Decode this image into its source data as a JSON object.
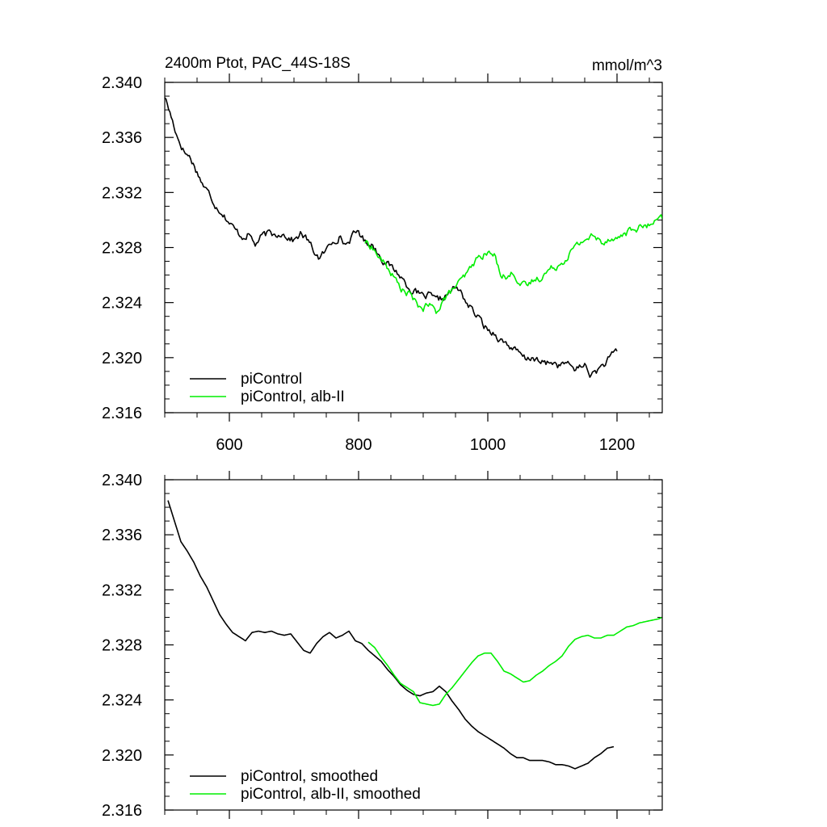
{
  "title_left": "2400m Ptot, PAC_44S-18S",
  "title_right": "mmol/m^3",
  "colors": {
    "control": "#000000",
    "alb": "#00ee00",
    "axis": "#000000"
  },
  "chart_data": [
    {
      "type": "line",
      "xlim": [
        500,
        1270
      ],
      "ylim": [
        2.316,
        2.34
      ],
      "yticks": [
        "2.316",
        "2.320",
        "2.324",
        "2.328",
        "2.332",
        "2.336",
        "2.340"
      ],
      "xticks": [
        "600",
        "800",
        "1000",
        "1200"
      ],
      "show_xtick_labels": true,
      "legend_position": "bottom-left",
      "series": [
        {
          "name": "piControl",
          "color": "control",
          "x": [
            500,
            510,
            520,
            530,
            540,
            550,
            560,
            570,
            580,
            590,
            600,
            610,
            620,
            630,
            640,
            650,
            660,
            670,
            680,
            690,
            700,
            710,
            720,
            730,
            740,
            750,
            760,
            770,
            780,
            790,
            800,
            810,
            820,
            830,
            840,
            850,
            860,
            870,
            880,
            890,
            900,
            910,
            920,
            930,
            940,
            950,
            960,
            970,
            980,
            990,
            1000,
            1010,
            1020,
            1030,
            1040,
            1050,
            1060,
            1070,
            1080,
            1090,
            1100,
            1110,
            1120,
            1130,
            1140,
            1150,
            1160,
            1170,
            1180,
            1190,
            1200
          ],
          "y": [
            2.339,
            2.3375,
            2.336,
            2.335,
            2.3345,
            2.3335,
            2.3325,
            2.3318,
            2.331,
            2.3305,
            2.3298,
            2.3292,
            2.3288,
            2.329,
            2.3282,
            2.3288,
            2.329,
            2.3289,
            2.3291,
            2.3288,
            2.3285,
            2.329,
            2.3286,
            2.3278,
            2.3272,
            2.3278,
            2.3285,
            2.3288,
            2.3282,
            2.3288,
            2.3292,
            2.3284,
            2.3283,
            2.3276,
            2.327,
            2.3266,
            2.3262,
            2.3256,
            2.325,
            2.3247,
            2.3244,
            2.3245,
            2.3241,
            2.3243,
            2.3247,
            2.3251,
            2.3246,
            2.3238,
            2.3232,
            2.3226,
            2.322,
            2.3218,
            2.3213,
            2.321,
            2.3206,
            2.3202,
            2.3198,
            2.3201,
            2.3196,
            2.3196,
            2.3197,
            2.3194,
            2.3196,
            2.3193,
            2.3192,
            2.3195,
            2.3187,
            2.3191,
            2.3195,
            2.32,
            2.3205
          ]
        },
        {
          "name": "piControl, alb-II",
          "color": "alb",
          "x": [
            810,
            820,
            830,
            840,
            850,
            860,
            870,
            880,
            890,
            900,
            910,
            920,
            930,
            940,
            950,
            960,
            970,
            980,
            990,
            1000,
            1010,
            1020,
            1030,
            1040,
            1050,
            1060,
            1070,
            1080,
            1090,
            1100,
            1110,
            1120,
            1130,
            1140,
            1150,
            1160,
            1170,
            1180,
            1190,
            1200,
            1210,
            1220,
            1230,
            1240,
            1250,
            1260,
            1270
          ],
          "y": [
            2.3284,
            2.3281,
            2.3274,
            2.3268,
            2.3262,
            2.3254,
            2.3248,
            2.3246,
            2.3238,
            2.3236,
            2.3238,
            2.3233,
            2.3242,
            2.3246,
            2.3252,
            2.3256,
            2.3262,
            2.327,
            2.3274,
            2.3276,
            2.3274,
            2.3262,
            2.3258,
            2.3262,
            2.3254,
            2.3251,
            2.3256,
            2.3258,
            2.3262,
            2.3265,
            2.3268,
            2.3272,
            2.3278,
            2.3282,
            2.3286,
            2.3288,
            2.3286,
            2.3284,
            2.3288,
            2.3286,
            2.329,
            2.3292,
            2.3294,
            2.3295,
            2.3296,
            2.3298,
            2.3301
          ]
        }
      ]
    },
    {
      "type": "line",
      "xlim": [
        500,
        1270
      ],
      "ylim": [
        2.316,
        2.34
      ],
      "yticks": [
        "2.316",
        "2.320",
        "2.324",
        "2.328",
        "2.332",
        "2.336",
        "2.340"
      ],
      "xticks": [
        "600",
        "800",
        "1000",
        "1200"
      ],
      "show_xtick_labels": false,
      "legend_position": "bottom-left",
      "series": [
        {
          "name": "piControl, smoothed",
          "color": "control",
          "x": [
            505,
            515,
            525,
            535,
            545,
            555,
            565,
            575,
            585,
            595,
            605,
            615,
            625,
            635,
            645,
            655,
            665,
            675,
            685,
            695,
            705,
            715,
            725,
            735,
            745,
            755,
            765,
            775,
            785,
            795,
            805,
            815,
            825,
            835,
            845,
            855,
            865,
            875,
            885,
            895,
            905,
            915,
            925,
            935,
            945,
            955,
            965,
            975,
            985,
            995,
            1005,
            1015,
            1025,
            1035,
            1045,
            1055,
            1065,
            1075,
            1085,
            1095,
            1105,
            1115,
            1125,
            1135,
            1145,
            1155,
            1165,
            1175,
            1185,
            1195
          ],
          "y": [
            2.3385,
            2.337,
            2.3355,
            2.3348,
            2.334,
            2.333,
            2.3322,
            2.3312,
            2.3302,
            2.3295,
            2.3289,
            2.3286,
            2.3283,
            2.3289,
            2.329,
            2.3289,
            2.329,
            2.3288,
            2.3287,
            2.3288,
            2.3282,
            2.3276,
            2.3274,
            2.3281,
            2.3286,
            2.3289,
            2.3285,
            2.3287,
            2.329,
            2.3283,
            2.3281,
            2.3276,
            2.3272,
            2.3268,
            2.3262,
            2.3257,
            2.3251,
            2.3247,
            2.3244,
            2.3243,
            2.3245,
            2.3246,
            2.325,
            2.3246,
            2.3239,
            2.3233,
            2.3226,
            2.3221,
            2.3217,
            2.3214,
            2.3211,
            2.3208,
            2.3205,
            2.3201,
            2.3198,
            2.3198,
            2.3196,
            2.3196,
            2.3196,
            2.3195,
            2.3193,
            2.3193,
            2.3192,
            2.319,
            2.3192,
            2.3194,
            2.3198,
            2.3201,
            2.3205,
            2.3206
          ]
        },
        {
          "name": "piControl, alb-II, smoothed",
          "color": "alb",
          "x": [
            815,
            825,
            835,
            845,
            855,
            865,
            875,
            885,
            895,
            905,
            915,
            925,
            935,
            945,
            955,
            965,
            975,
            985,
            995,
            1005,
            1015,
            1025,
            1035,
            1045,
            1055,
            1065,
            1075,
            1085,
            1095,
            1105,
            1115,
            1125,
            1135,
            1145,
            1155,
            1165,
            1175,
            1185,
            1195,
            1205,
            1215,
            1225,
            1235,
            1245,
            1255,
            1265,
            1270
          ],
          "y": [
            2.3282,
            2.3278,
            2.3271,
            2.3265,
            2.3258,
            2.3252,
            2.3249,
            2.3246,
            2.3238,
            2.3237,
            2.3236,
            2.3237,
            2.3244,
            2.3249,
            2.3255,
            2.3261,
            2.3267,
            2.3272,
            2.3274,
            2.3274,
            2.3268,
            2.3261,
            2.3259,
            2.3256,
            2.3253,
            2.3254,
            2.3258,
            2.3261,
            2.3265,
            2.3268,
            2.3272,
            2.3279,
            2.3284,
            2.3286,
            2.3287,
            2.3285,
            2.3285,
            2.3287,
            2.3287,
            2.329,
            2.3293,
            2.3294,
            2.3296,
            2.3297,
            2.3298,
            2.3299,
            2.33
          ]
        }
      ]
    }
  ]
}
